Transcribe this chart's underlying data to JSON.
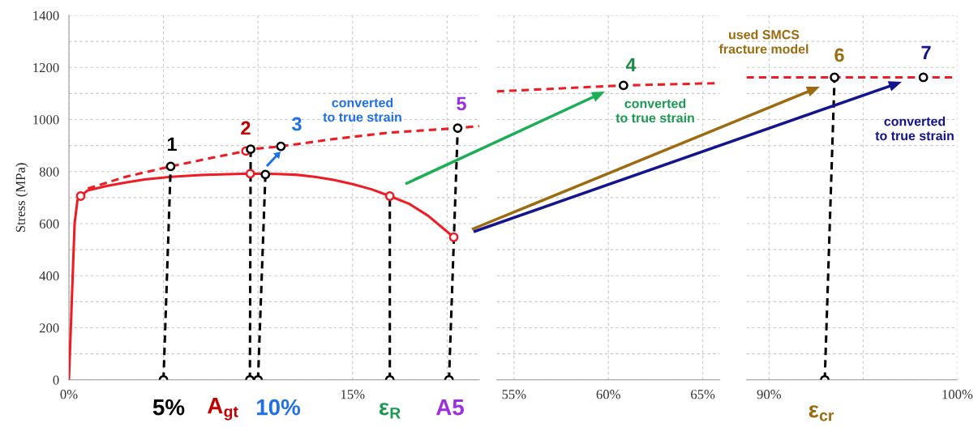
{
  "chart_data": [
    {
      "type": "line",
      "ylabel": "Stress (MPa)",
      "xlim": [
        0,
        21.7
      ],
      "ylim": [
        0,
        1400
      ],
      "xticks": [
        {
          "value": 0,
          "label": "0%"
        },
        {
          "value": 5,
          "label": null
        },
        {
          "value": 10,
          "label": null
        },
        {
          "value": 15,
          "label": "15%"
        },
        {
          "value": 20,
          "label": null
        }
      ],
      "yticks": [
        0,
        {
          "value": 100,
          "label": null
        },
        200,
        {
          "value": 300,
          "label": null
        },
        400,
        {
          "value": 500,
          "label": null
        },
        600,
        {
          "value": 700,
          "label": null
        },
        800,
        {
          "value": 900,
          "label": null
        },
        1000,
        {
          "value": 1100,
          "label": null
        },
        1200,
        {
          "value": 1300,
          "label": null
        },
        1400
      ],
      "grid": true,
      "legend": false,
      "series": [
        {
          "color": "#ee1c25",
          "line_style": "solid",
          "x": [
            0,
            0.15,
            0.3,
            0.45,
            0.62,
            1.0,
            2,
            3,
            4,
            5.38,
            7,
            9.59,
            11,
            12,
            13,
            14,
            15,
            16,
            16.97,
            18,
            19,
            20.35
          ],
          "values": [
            0,
            300,
            600,
            690,
            706,
            728,
            745,
            758,
            770,
            780,
            787,
            792,
            791,
            788,
            780,
            768,
            752,
            732,
            706,
            676,
            630,
            548
          ]
        },
        {
          "color": "#ee1c25",
          "line_style": "dashed",
          "x": [
            1.0,
            3,
            5.38,
            7.5,
            9.36,
            9.61,
            11.21,
            14,
            17,
            20.56,
            21.69
          ],
          "values": [
            735,
            780,
            820,
            852,
            879,
            886,
            897,
            925,
            950,
            967,
            975
          ]
        },
        {
          "color": "#000000",
          "line_style": "dashed",
          "x": [
            5.0,
            5.38
          ],
          "values": [
            0,
            820
          ]
        },
        {
          "color": "#000000",
          "line_style": "dashed",
          "x": [
            9.57,
            9.61
          ],
          "values": [
            0,
            886
          ]
        },
        {
          "color": "#000000",
          "line_style": "dashed",
          "x": [
            10.0,
            10.39
          ],
          "values": [
            0,
            789
          ]
        },
        {
          "color": "#000000",
          "line_style": "dashed",
          "x": [
            16.97,
            16.97
          ],
          "values": [
            0,
            706
          ]
        },
        {
          "color": "#000000",
          "line_style": "dashed",
          "x": [
            20.1,
            20.56
          ],
          "values": [
            0,
            967
          ]
        },
        {
          "type": "scatter",
          "color": "#ee1c25",
          "marker": "circle",
          "x": [
            0.62,
            9.59,
            9.36,
            16.97,
            20.35
          ],
          "values": [
            706,
            792,
            879,
            706,
            548
          ]
        },
        {
          "type": "scatter",
          "color": "#000000",
          "marker": "circle",
          "x": [
            5.38,
            9.61,
            11.21,
            10.39,
            20.56,
            5.0,
            9.57,
            10.0,
            16.97,
            20.1
          ],
          "values": [
            820,
            886,
            897,
            789,
            967,
            0,
            0,
            0,
            0,
            0
          ]
        }
      ],
      "annotations": [
        "1",
        "2",
        "3",
        "5",
        "converted\nto true strain",
        "5%",
        "A$_{gt}$",
        "10%",
        "ε$_{R}$",
        "A5"
      ]
    },
    {
      "type": "line",
      "xlim": [
        54.09,
        65.9
      ],
      "ylim": [
        0,
        1400
      ],
      "xticks": [
        {
          "value": 55,
          "label": "55%"
        },
        {
          "value": 60,
          "label": "60%"
        },
        {
          "value": 65,
          "label": "65%"
        }
      ],
      "yticks": [
        0,
        100,
        200,
        300,
        400,
        500,
        600,
        700,
        800,
        900,
        1000,
        1100,
        1200,
        1300,
        1400
      ],
      "tick_labels": "x",
      "grid": true,
      "legend": false,
      "series": [
        {
          "color": "#ee1c25",
          "line_style": "dashed",
          "x": [
            54.09,
            60.8,
            65.9
          ],
          "values": [
            1108,
            1131,
            1140
          ]
        },
        {
          "type": "scatter",
          "color": "#000000",
          "marker": "circle",
          "x": [
            60.8
          ],
          "values": [
            1131
          ]
        }
      ],
      "annotations": [
        "4",
        "converted\nto true strain"
      ]
    },
    {
      "type": "line",
      "xlim": [
        88.8,
        100
      ],
      "ylim": [
        0,
        1400
      ],
      "xticks": [
        {
          "value": 90,
          "label": "90%"
        },
        {
          "value": 95,
          "label": null
        },
        {
          "value": 100,
          "label": "100%"
        }
      ],
      "yticks": [
        0,
        100,
        200,
        300,
        400,
        500,
        600,
        700,
        800,
        900,
        1000,
        1100,
        1200,
        1300,
        1400
      ],
      "tick_labels": "x",
      "grid": true,
      "legend": false,
      "series": [
        {
          "color": "#ee1c25",
          "line_style": "dashed",
          "x": [
            88.8,
            99.8
          ],
          "values": [
            1162,
            1162
          ]
        },
        {
          "color": "#000000",
          "line_style": "dashed",
          "x": [
            92.96,
            93.48
          ],
          "values": [
            0,
            1162
          ]
        },
        {
          "type": "scatter",
          "color": "#000000",
          "marker": "circle",
          "x": [
            93.48,
            98.2,
            92.96
          ],
          "values": [
            1162,
            1162,
            0
          ]
        }
      ],
      "annotations": [
        "used SMCS\nfracture model",
        "6",
        "7",
        "converted\nto true strain",
        "ε$_{cr}$"
      ]
    }
  ]
}
